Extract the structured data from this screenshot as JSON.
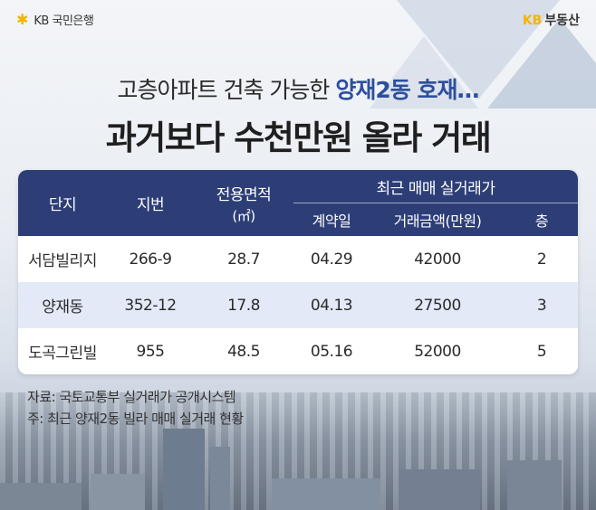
{
  "brand": {
    "bank_logo": "KB 국민은행",
    "estate_logo_mark": "KB",
    "estate_logo_text": "부동산"
  },
  "headline": {
    "line1_prefix": "고층아파트 건축 가능한 ",
    "line1_highlight": "양재2동 호재…",
    "line2": "과거보다 수천만원 올라 거래"
  },
  "table": {
    "headers": {
      "complex": "단지",
      "lot": "지번",
      "area": "전용면적",
      "area_unit": "(㎡)",
      "recent_group": "최근 매매 실거래가",
      "contract_date": "계약일",
      "price": "거래금액(만원)",
      "floor": "층"
    },
    "rows": [
      {
        "complex": "서담빌리지",
        "lot": "266-9",
        "area": "28.7",
        "date": "04.29",
        "price": "42000",
        "floor": "2"
      },
      {
        "complex": "양재동",
        "lot": "352-12",
        "area": "17.8",
        "date": "04.13",
        "price": "27500",
        "floor": "3"
      },
      {
        "complex": "도곡그린빌",
        "lot": "955",
        "area": "48.5",
        "date": "05.16",
        "price": "52000",
        "floor": "5"
      }
    ]
  },
  "notes": {
    "source": "자료: 국토교통부 실거래가 공개시스템",
    "note": "주: 최근 양재2동 빌라 매매 실거래 현황"
  },
  "colors": {
    "header_bg": "#2d3e77",
    "highlight": "#2d4f9e",
    "alt_row": "#e3e9f7",
    "kb_yellow": "#f5b400"
  }
}
